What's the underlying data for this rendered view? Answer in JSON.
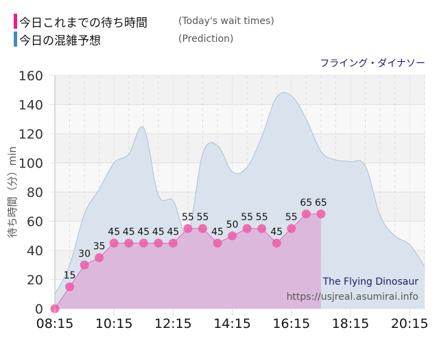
{
  "legend": {
    "items": [
      {
        "label": "今日これまでの待ち時間",
        "sub": "(Today's wait times)",
        "color": "#ee1b8d"
      },
      {
        "label": "今日の混雑予想",
        "sub": "(Prediction)",
        "color": "#4a86bf"
      }
    ]
  },
  "ride_title": "フライング・ダイナソー",
  "watermark": {
    "name": "The Flying Dinosaur",
    "url": "https://usjreal.asumirai.info"
  },
  "colors": {
    "actual_fill": "#dcb4d9",
    "actual_line": "#e06ab4",
    "actual_marker": "#ee5aa8",
    "prediction_fill": "#d8e2ec",
    "prediction_line": "#a9c0d6",
    "plot_band_a": "#f2f2f2",
    "plot_band_b": "#f8f8f8"
  },
  "chart_data": {
    "type": "area",
    "title": "フライング・ダイナソー",
    "xlabel": "",
    "ylabel": "待ち時間（分）min",
    "ylim": [
      0,
      160
    ],
    "yticks": [
      0,
      20,
      40,
      60,
      80,
      100,
      120,
      140,
      160
    ],
    "xtick_labels": [
      "08:15",
      "10:15",
      "12:15",
      "14:15",
      "16:15",
      "18:15",
      "20:15"
    ],
    "grid": true,
    "legend_position": "top-left",
    "x": [
      "08:15",
      "08:45",
      "09:15",
      "09:45",
      "10:15",
      "10:45",
      "11:15",
      "11:45",
      "12:15",
      "12:45",
      "13:15",
      "13:45",
      "14:15",
      "14:45",
      "15:15",
      "15:45",
      "16:15",
      "16:45",
      "17:15",
      "17:45",
      "18:15",
      "18:45",
      "19:15",
      "19:45",
      "20:15",
      "20:45"
    ],
    "series": [
      {
        "name": "今日これまでの待ち時間 (Today's wait times)",
        "values": [
          0,
          15,
          30,
          35,
          45,
          45,
          45,
          45,
          45,
          55,
          55,
          45,
          50,
          55,
          55,
          45,
          55,
          65,
          65
        ]
      },
      {
        "name": "今日の混雑予想 (Prediction)",
        "values": [
          10,
          30,
          65,
          82,
          100,
          106,
          124,
          78,
          74,
          52,
          106,
          112,
          94,
          97,
          118,
          145,
          146,
          130,
          108,
          102,
          101,
          98,
          64,
          50,
          44,
          29
        ]
      }
    ]
  }
}
